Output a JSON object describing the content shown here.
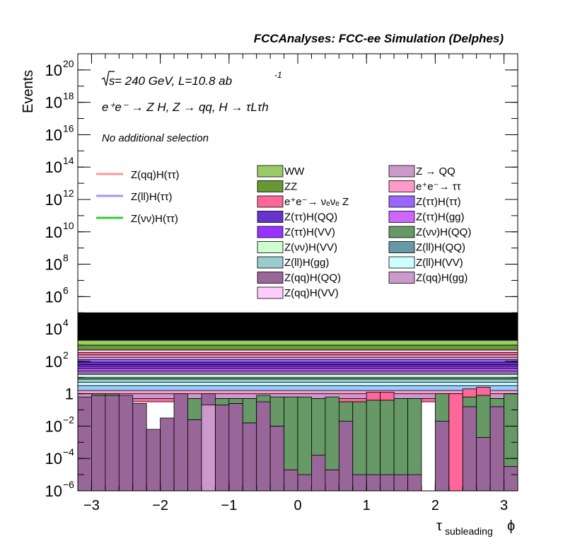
{
  "chart_data": {
    "type": "bar",
    "stacked": true,
    "title": "FCCAnalyses: FCC-ee Simulation (Delphes)",
    "ylabel": "Events",
    "xlabel_main": "τ",
    "xlabel_sub": "subleading",
    "xlabel_suffix": "ϕ",
    "log_y": true,
    "xlim": [
      -3.2,
      3.2
    ],
    "ylim": [
      1e-06,
      1e+21
    ],
    "x_ticks": [
      -3,
      -2,
      -1,
      0,
      1,
      2,
      3
    ],
    "x_tick_labels": [
      "−3",
      "−2",
      "−1",
      "0",
      "1",
      "2",
      "3"
    ],
    "y_ticks": [
      {
        "base": "10",
        "exp": "20",
        "value": 1e+20
      },
      {
        "base": "10",
        "exp": "18",
        "value": 1e+18
      },
      {
        "base": "10",
        "exp": "16",
        "value": 1e+16
      },
      {
        "base": "10",
        "exp": "14",
        "value": 100000000000000.0
      },
      {
        "base": "10",
        "exp": "12",
        "value": 1000000000000.0
      },
      {
        "base": "10",
        "exp": "10",
        "value": 10000000000.0
      },
      {
        "base": "10",
        "exp": "8",
        "value": 100000000.0
      },
      {
        "base": "10",
        "exp": "6",
        "value": 1000000.0
      },
      {
        "base": "10",
        "exp": "4",
        "value": 10000.0
      },
      {
        "base": "10",
        "exp": "2",
        "value": 100.0
      },
      {
        "base": "1",
        "exp": "",
        "value": 1
      },
      {
        "base": "10",
        "exp": "−2",
        "value": 0.01
      },
      {
        "base": "10",
        "exp": "−4",
        "value": 0.0001
      },
      {
        "base": "10",
        "exp": "−6",
        "value": 1e-06
      }
    ],
    "annotations": {
      "energy_prefix": "s",
      "energy_rest": " = 240 GeV, L=10.8 ab",
      "energy_exp": "-1",
      "process": "e",
      "process_full": "e⁺e⁻ → Z H, Z → qq, H → τLτh",
      "selection": "No additional selection"
    },
    "n_bins": 32,
    "stack_boundaries_log10": [
      -6.0,
      -1.1,
      -0.5,
      -0.3,
      0.0,
      0.2,
      0.5,
      0.7,
      0.9,
      1.0,
      1.2,
      1.4,
      1.55,
      1.7,
      1.8,
      1.95,
      2.1,
      2.25,
      2.4,
      2.55,
      2.7,
      3.0,
      3.3,
      5.0
    ],
    "stack_colors": [
      "#996699",
      "#669966",
      "#ff6699",
      "#cc99cc",
      "#ff99cc",
      "#99ccff",
      "#ccffff",
      "#99cccc",
      "#6699a3",
      "#ccffcc",
      "#9966cc",
      "#cc66ff",
      "#9933ff",
      "#7a52d6",
      "#6633cc",
      "#9966ff",
      "#cc99ee",
      "#ff99bb",
      "#ff6699",
      "#ffccff",
      "#669933",
      "#99cc66"
    ],
    "bottom_layers": {
      "zqq_hqq_log10": [
        -0.2,
        -0.1,
        -0.1,
        -0.1,
        -0.6,
        -2.2,
        -1.5,
        0.0,
        -1.6,
        0.0,
        -0.7,
        -0.6,
        -1.8,
        -0.5,
        -2.0,
        -4.7,
        -5.0,
        -3.8,
        -4.7,
        -1.7,
        -5.0,
        -5.0,
        -5.0,
        -5.0,
        -5.0,
        -6.0,
        -1.7,
        -1.7,
        -0.8,
        -2.7,
        -0.8,
        -4.5
      ],
      "zvv_hqq_top_log10": [
        -0.2,
        0.0,
        0.0,
        -0.1,
        -0.6,
        -2.2,
        -1.5,
        0.0,
        -0.3,
        -0.3,
        -0.3,
        -0.3,
        -0.3,
        -0.1,
        -0.2,
        -0.2,
        -0.2,
        -0.3,
        -0.2,
        -0.5,
        -0.5,
        -0.4,
        -0.4,
        -0.3,
        -0.3,
        -6.0,
        0.0,
        -0.2,
        -0.2,
        -0.1,
        -0.3,
        0.0
      ],
      "zqq_hgg_spike_bin": 9,
      "zqq_hgg_spike_log10": -0.7,
      "ee_vve_z_spike_bin": 27,
      "ee_vve_z_spike_log10": 0.0,
      "ee_vve_z_bins": [
        21,
        27
      ],
      "ee_vve_z_levels_log10": [
        0.0,
        -0.6
      ]
    },
    "legend_lines": [
      {
        "label": "Z(qq)H(ττ)",
        "color": "#ff9999"
      },
      {
        "label": "Z(ll)H(ττ)",
        "color": "#9999ff"
      },
      {
        "label": "Z(νν)H(ττ)",
        "color": "#33cc33"
      }
    ],
    "legend_col1": [
      {
        "label": "WW",
        "color": "#99cc66"
      },
      {
        "label": "ZZ",
        "color": "#669933"
      },
      {
        "label": "e⁺e⁻→ νₑνₑ Z",
        "color": "#ff6699"
      },
      {
        "label": "Z(ττ)H(QQ)",
        "color": "#6633cc"
      },
      {
        "label": "Z(ττ)H(VV)",
        "color": "#9933ff"
      },
      {
        "label": "Z(νν)H(VV)",
        "color": "#ccffcc"
      },
      {
        "label": "Z(ll)H(gg)",
        "color": "#99cccc"
      },
      {
        "label": "Z(qq)H(QQ)",
        "color": "#996699"
      },
      {
        "label": "Z(qq)H(VV)",
        "color": "#ffccff"
      }
    ],
    "legend_col2": [
      {
        "label": "Z → QQ",
        "color": "#cc99cc"
      },
      {
        "label": "e⁺e⁻→ ττ",
        "color": "#ff99cc"
      },
      {
        "label": "Z(ττ)H(ττ)",
        "color": "#9966ff"
      },
      {
        "label": "Z(ττ)H(gg)",
        "color": "#cc66ff"
      },
      {
        "label": "Z(νν)H(QQ)",
        "color": "#669966"
      },
      {
        "label": "Z(ll)H(QQ)",
        "color": "#6699a3"
      },
      {
        "label": "Z(ll)H(VV)",
        "color": "#ccffff"
      },
      {
        "label": "Z(qq)H(gg)",
        "color": "#cc99cc"
      }
    ]
  }
}
